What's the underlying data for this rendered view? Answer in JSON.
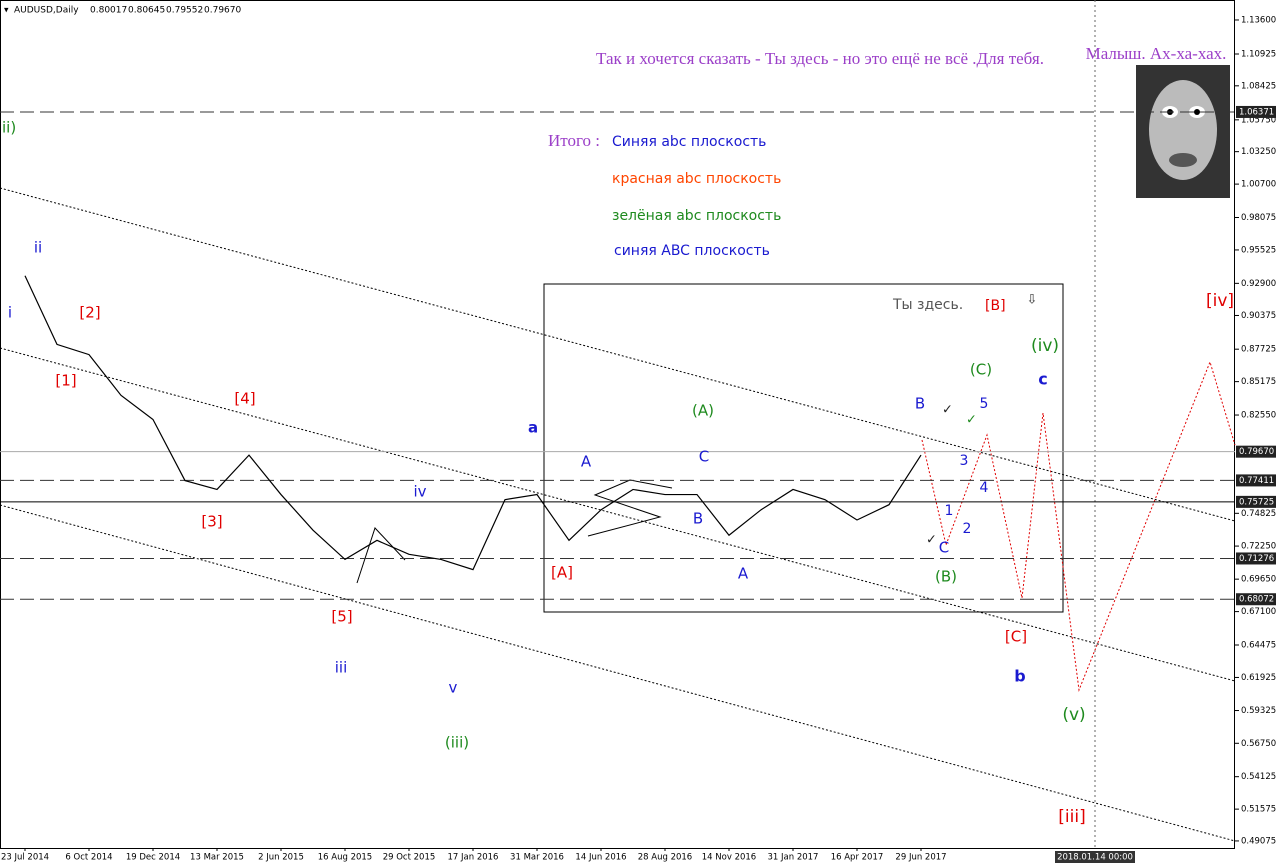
{
  "chart_data": {
    "type": "line",
    "title": "AUDUSD,Daily",
    "ohlc": [
      "0.80017",
      "0.80645",
      "0.79552",
      "0.79670"
    ],
    "x": [
      "23 Jul 2014",
      null,
      "6 Oct 2014",
      null,
      "19 Dec 2014",
      null,
      "13 Mar 2015",
      null,
      "2 Jun 2015",
      null,
      "16 Aug 2015",
      null,
      "29 Oct 2015",
      null,
      "17 Jan 2016",
      null,
      "31 Mar 2016",
      null,
      "14 Jun 2016",
      null,
      "28 Aug 2016",
      null,
      "14 Nov 2016",
      null,
      "31 Jan 2017",
      null,
      "16 Apr 2017",
      null,
      "29 Jun 2017"
    ],
    "series": [
      {
        "name": "AUDUSD",
        "color": "#000000",
        "values": [
          0.935,
          0.881,
          0.873,
          0.841,
          0.822,
          0.774,
          0.767,
          0.794,
          0.763,
          0.735,
          0.712,
          0.727,
          0.716,
          0.712,
          0.704,
          0.759,
          0.763,
          0.727,
          0.751,
          0.767,
          0.763,
          0.763,
          0.731,
          0.751,
          0.767,
          0.759,
          0.743,
          0.755,
          0.794
        ]
      }
    ],
    "ylim": [
      0.4852,
      1.1517
    ],
    "yticks": [
      {
        "value": 1.136,
        "label": "1.13600"
      },
      1.10925,
      1.08425,
      {
        "value": 1.0575,
        "label": "1.05750"
      },
      {
        "value": 1.0325,
        "label": "1.03250"
      },
      {
        "value": 1.007,
        "label": "1.00700"
      },
      0.98075,
      0.95525,
      {
        "value": 0.929,
        "label": "0.92900"
      },
      0.90375,
      0.87725,
      0.85175,
      {
        "value": 0.8255,
        "label": "0.82550"
      },
      0.74825,
      {
        "value": 0.7225,
        "label": "0.72250"
      },
      {
        "value": 0.6965,
        "label": "0.69650"
      },
      {
        "value": 0.671,
        "label": "0.67100"
      },
      0.64475,
      0.61925,
      0.59325,
      {
        "value": 0.5675,
        "label": "0.56750"
      },
      0.54125,
      0.51575,
      0.49075
    ],
    "levels": [
      {
        "value": 1.06371,
        "label": "1.06371",
        "style": "dashed"
      },
      {
        "value": 0.7967,
        "label": "0.79670",
        "style": "solid-gray"
      },
      {
        "value": 0.77411,
        "label": "0.77411",
        "style": "dashed"
      },
      {
        "value": 0.75725,
        "label": "0.75725",
        "style": "solid"
      },
      {
        "value": 0.71276,
        "label": "0.71276",
        "style": "dashed"
      },
      {
        "value": 0.68072,
        "label": "0.68072",
        "style": "dashed"
      }
    ],
    "cursor_label": "2018.01.14 00:00",
    "annotations": [
      {
        "text": "Так и хочется сказать - Ты здесь - но это ещё не всё .Для тебя.",
        "color": "#9b3fc8"
      },
      {
        "text": "Малыш. Ах-ха-хах.",
        "color": "#9b3fc8"
      },
      {
        "text": "Итого :",
        "color": "#9b3fc8"
      },
      {
        "text": "Синяя abc плоскость",
        "color": "#1a1ad0"
      },
      {
        "text": "красная abc плоскость",
        "color": "#ff4500"
      },
      {
        "text": "зелёная abc плоскость",
        "color": "#1e8a1e"
      },
      {
        "text": "синяя ABC плоскость",
        "color": "#1a1ad0"
      },
      {
        "text": "Ты здесь.",
        "color": "#555555"
      },
      {
        "text": "[B]",
        "color": "#e00000"
      },
      {
        "text": "ii)",
        "color": "#1e8a1e"
      },
      {
        "text": "ii",
        "color": "#1a1ad0"
      },
      {
        "text": "i",
        "color": "#1a1ad0"
      },
      {
        "text": "[2]",
        "color": "#e00000"
      },
      {
        "text": "[1]",
        "color": "#e00000"
      },
      {
        "text": "[4]",
        "color": "#e00000"
      },
      {
        "text": "[3]",
        "color": "#e00000"
      },
      {
        "text": "[5]",
        "color": "#e00000"
      },
      {
        "text": "iii",
        "color": "#1a1ad0"
      },
      {
        "text": "iv",
        "color": "#1a1ad0"
      },
      {
        "text": "v",
        "color": "#1a1ad0"
      },
      {
        "text": "(iii)",
        "color": "#1e8a1e"
      },
      {
        "text": "a",
        "color": "#1a1ad0"
      },
      {
        "text": "A",
        "color": "#1a1ad0"
      },
      {
        "text": "[A]",
        "color": "#e00000"
      },
      {
        "text": "(A)",
        "color": "#1e8a1e"
      },
      {
        "text": "C",
        "color": "#1a1ad0"
      },
      {
        "text": "B",
        "color": "#1a1ad0"
      },
      {
        "text": "A",
        "color": "#1a1ad0"
      },
      {
        "text": "B",
        "color": "#1a1ad0"
      },
      {
        "text": "(C)",
        "color": "#1e8a1e"
      },
      {
        "text": "5",
        "color": "#1a1ad0"
      },
      {
        "text": "3",
        "color": "#1a1ad0"
      },
      {
        "text": "4",
        "color": "#1a1ad0"
      },
      {
        "text": "1",
        "color": "#1a1ad0"
      },
      {
        "text": "2",
        "color": "#1a1ad0"
      },
      {
        "text": "C",
        "color": "#1a1ad0"
      },
      {
        "text": "(B)",
        "color": "#1e8a1e"
      },
      {
        "text": "(iv)",
        "color": "#1e8a1e"
      },
      {
        "text": "c",
        "color": "#1a1ad0"
      },
      {
        "text": "[iv]",
        "color": "#e00000"
      },
      {
        "text": "[C]",
        "color": "#e00000"
      },
      {
        "text": "b",
        "color": "#1a1ad0"
      },
      {
        "text": "(v)",
        "color": "#1e8a1e"
      },
      {
        "text": "[iii]",
        "color": "#e00000"
      }
    ]
  }
}
